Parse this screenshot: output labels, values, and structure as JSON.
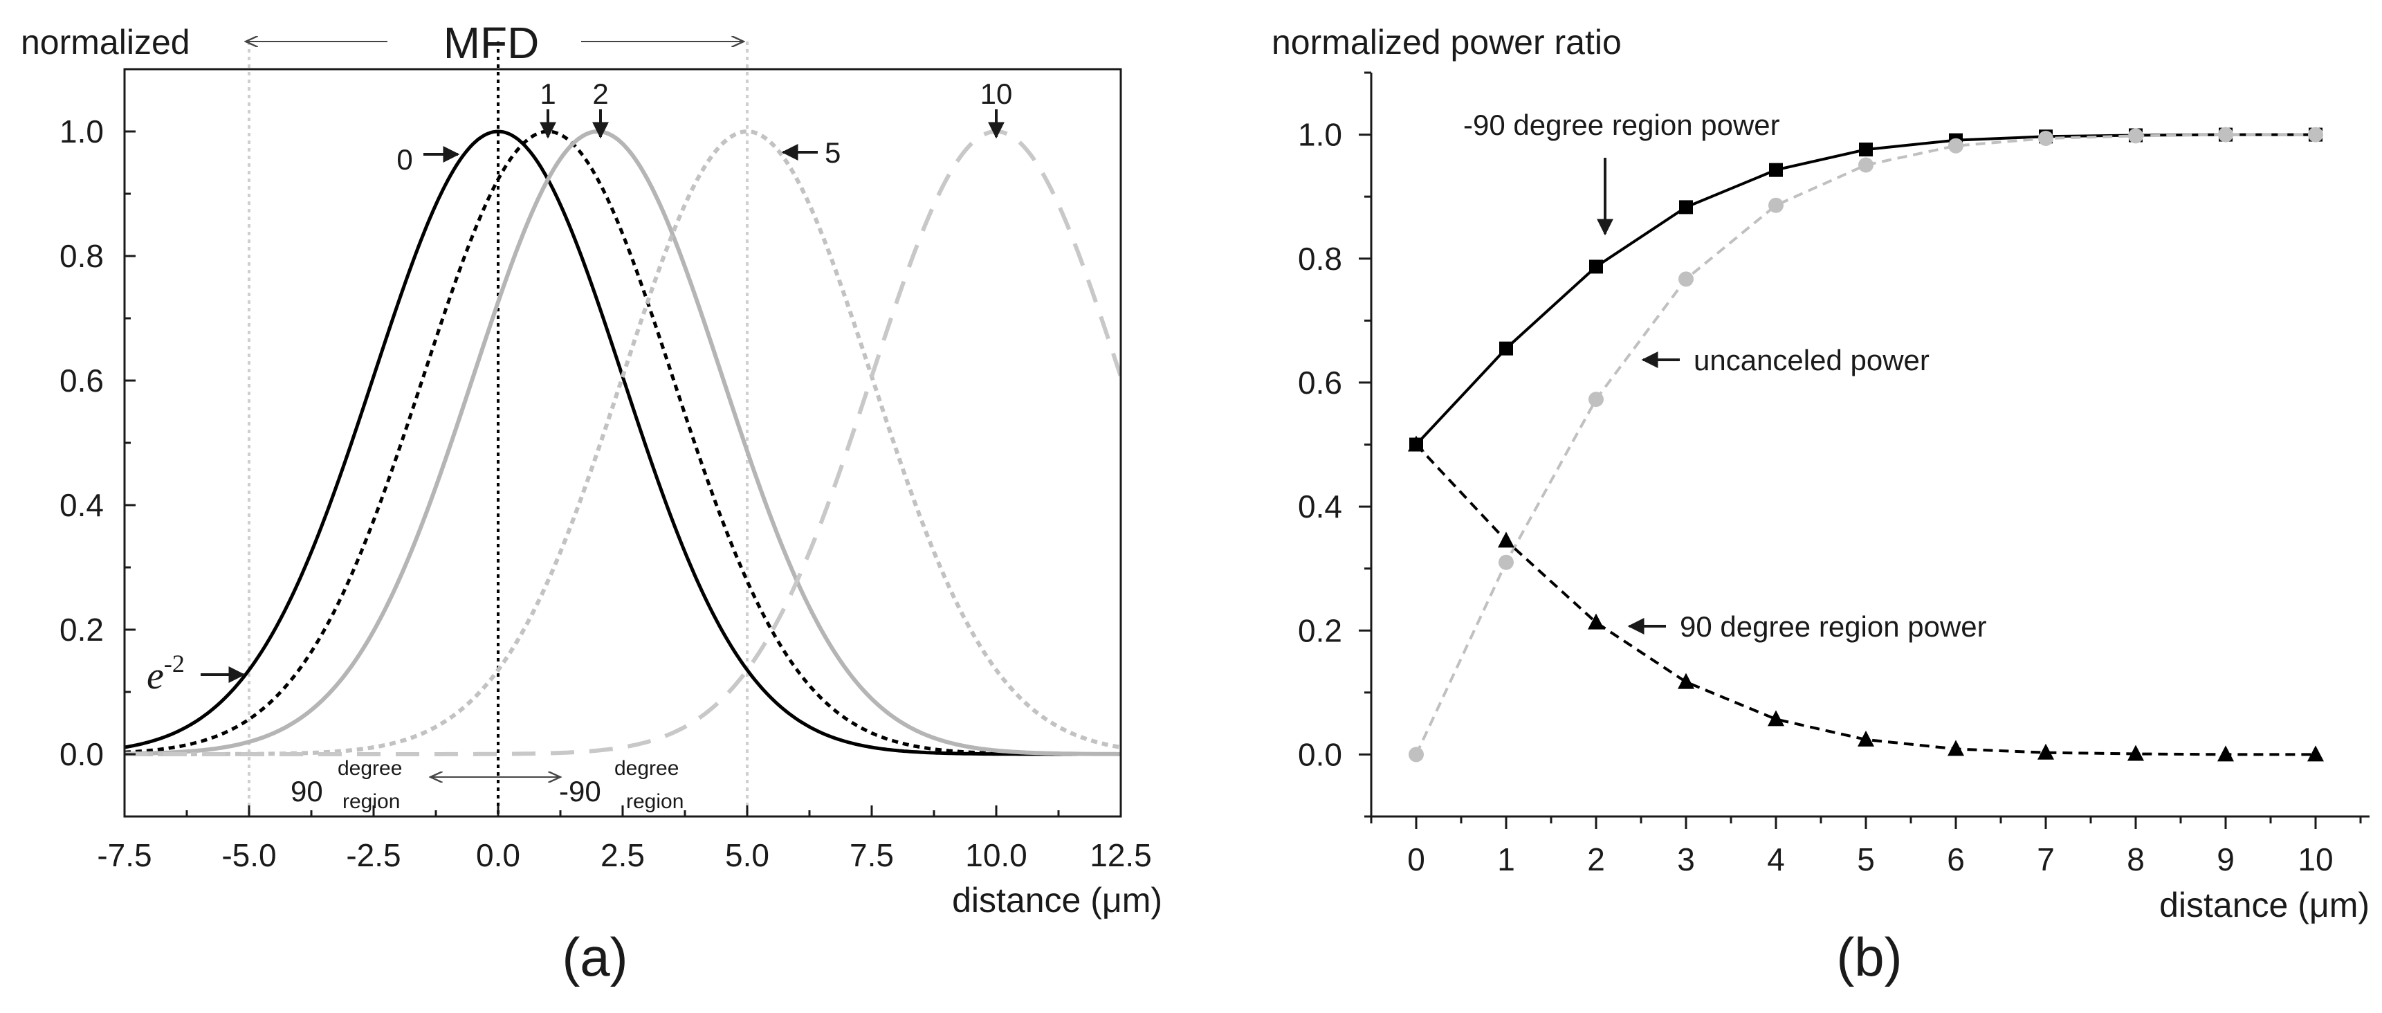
{
  "chart_data": [
    {
      "type": "line",
      "panel_label": "(a)",
      "title": "normalized",
      "top_label": "MFD",
      "xlabel": "distance (μm)",
      "ylabel": "normalized",
      "xlim": [
        -7.5,
        12.5
      ],
      "ylim": [
        -0.1,
        1.1
      ],
      "x_ticks": [
        "-7.5",
        "-5.0",
        "-2.5",
        "0.0",
        "2.5",
        "5.0",
        "7.5",
        "10.0",
        "12.5"
      ],
      "y_ticks": [
        "0.0",
        "0.2",
        "0.4",
        "0.6",
        "0.8",
        "1.0"
      ],
      "gaussian_half_width_e2": 5.0,
      "series": [
        {
          "name": "0",
          "center": 0,
          "color": "#000000",
          "style": "solid"
        },
        {
          "name": "1",
          "center": 1,
          "color": "#000000",
          "style": "dotted"
        },
        {
          "name": "2",
          "center": 2,
          "color": "#b5b5b5",
          "style": "solid"
        },
        {
          "name": "5",
          "center": 5,
          "color": "#c2c2c2",
          "style": "dotted"
        },
        {
          "name": "10",
          "center": 10,
          "color": "#c8c8c8",
          "style": "dashed"
        }
      ],
      "reference_lines": [
        {
          "x": -5,
          "color": "#cfcfcf"
        },
        {
          "x": 0,
          "color": "#000000"
        },
        {
          "x": 5,
          "color": "#cfcfcf"
        }
      ],
      "annotations": {
        "e2_base": "e",
        "e2_exp": "-2",
        "region_left_num": "90",
        "region_left_sup": "degree",
        "region_left_sub": "region",
        "region_right_num": "-90",
        "region_right_sup": "degree",
        "region_right_sub": "region"
      }
    },
    {
      "type": "line",
      "panel_label": "(b)",
      "title": "normalized power ratio",
      "xlabel": "distance (μm)",
      "ylabel": "normalized power ratio",
      "xlim": [
        -0.5,
        10.6
      ],
      "ylim": [
        -0.1,
        1.1
      ],
      "x_ticks": [
        "0",
        "1",
        "2",
        "3",
        "4",
        "5",
        "6",
        "7",
        "8",
        "9",
        "10"
      ],
      "y_ticks": [
        "0.0",
        "0.2",
        "0.4",
        "0.6",
        "0.8",
        "1.0"
      ],
      "x": [
        0,
        1,
        2,
        3,
        4,
        5,
        6,
        7,
        8,
        9,
        10
      ],
      "series": [
        {
          "name": "-90 degree region power",
          "marker": "square",
          "color": "#000000",
          "style": "solid",
          "values": [
            0.5,
            0.655,
            0.787,
            0.883,
            0.943,
            0.976,
            0.991,
            0.997,
            0.999,
            1.0,
            1.0
          ]
        },
        {
          "name": "uncanceled power",
          "marker": "circle",
          "color": "#c0c0c0",
          "style": "dashed",
          "values": [
            0.0,
            0.31,
            0.573,
            0.767,
            0.886,
            0.951,
            0.982,
            0.994,
            0.998,
            1.0,
            1.0
          ]
        },
        {
          "name": "90 degree region power",
          "marker": "triangle",
          "color": "#000000",
          "style": "dashed",
          "values": [
            0.5,
            0.345,
            0.213,
            0.117,
            0.057,
            0.024,
            0.009,
            0.003,
            0.001,
            0.0,
            0.0
          ]
        }
      ]
    }
  ]
}
